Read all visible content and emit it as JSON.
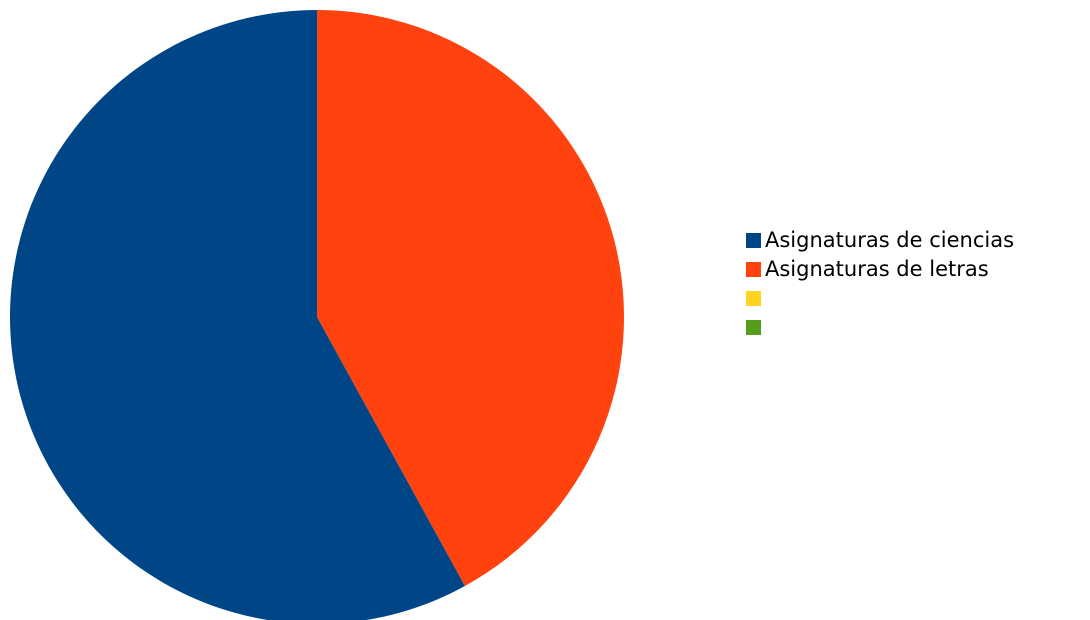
{
  "chart_data": {
    "type": "pie",
    "title": "",
    "legend_position": "right",
    "slices": [
      {
        "label": "Asignaturas de letras",
        "value": 42,
        "color": "#FF420E"
      },
      {
        "label": "Asignaturas de ciencias",
        "value": 58,
        "color": "#004586"
      }
    ],
    "legend": [
      {
        "label": "Asignaturas de ciencias",
        "color": "#004586"
      },
      {
        "label": "Asignaturas de letras",
        "color": "#FF420E"
      },
      {
        "label": "",
        "color": "#FFD320"
      },
      {
        "label": "",
        "color": "#579D1C"
      }
    ]
  }
}
